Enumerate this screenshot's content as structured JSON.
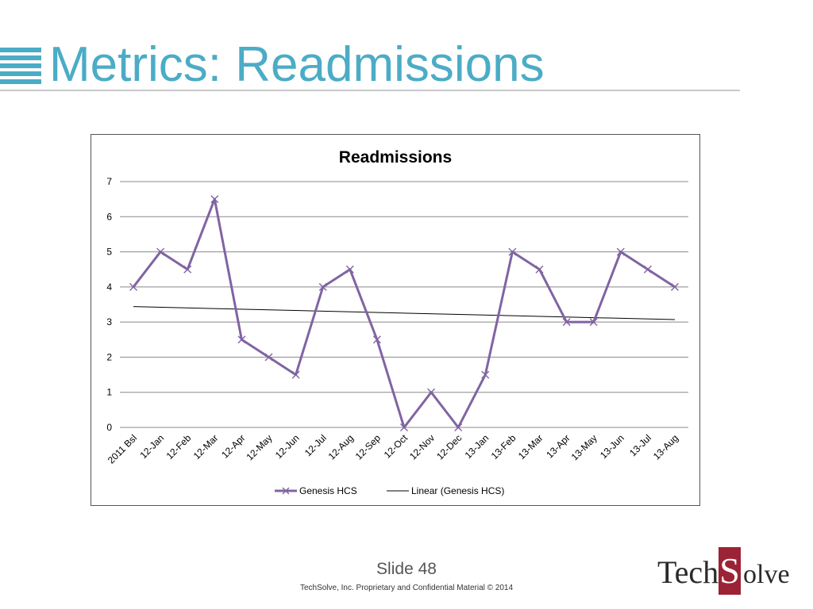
{
  "slide": {
    "title": "Metrics:  Readmissions",
    "slide_number": "Slide 48",
    "footer": "TechSolve, Inc. Proprietary and Confidential Material © 2014"
  },
  "logo": {
    "part1": "Tech",
    "part2": "S",
    "part3": "olve",
    "accent_color": "#9b2335"
  },
  "colors": {
    "title": "#4bacc6",
    "series": "#8064a2",
    "trend": "#000000",
    "grid": "#888888"
  },
  "chart_data": {
    "type": "line",
    "title": "Readmissions",
    "xlabel": "",
    "ylabel": "",
    "ylim": [
      0,
      7
    ],
    "yticks": [
      0,
      1,
      2,
      3,
      4,
      5,
      6,
      7
    ],
    "grid": true,
    "legend_position": "bottom",
    "categories": [
      "2011 Bsl",
      "12-Jan",
      "12-Feb",
      "12-Mar",
      "12-Apr",
      "12-May",
      "12-Jun",
      "12-Jul",
      "12-Aug",
      "12-Sep",
      "12-Oct",
      "12-Nov",
      "12-Dec",
      "13-Jan",
      "13-Feb",
      "13-Mar",
      "13-Apr",
      "13-May",
      "13-Jun",
      "13-Jul",
      "13-Aug"
    ],
    "series": [
      {
        "name": "Genesis HCS",
        "marker": "x",
        "values": [
          4,
          5,
          4.5,
          6.5,
          2.5,
          2,
          1.5,
          4,
          4.5,
          2.5,
          0,
          1,
          0,
          1.5,
          5,
          4.5,
          3,
          3,
          5,
          4.5,
          4
        ]
      }
    ],
    "trendline": {
      "name": "Linear (Genesis HCS)",
      "type": "linear",
      "start": 3.44,
      "end": 3.07
    }
  }
}
